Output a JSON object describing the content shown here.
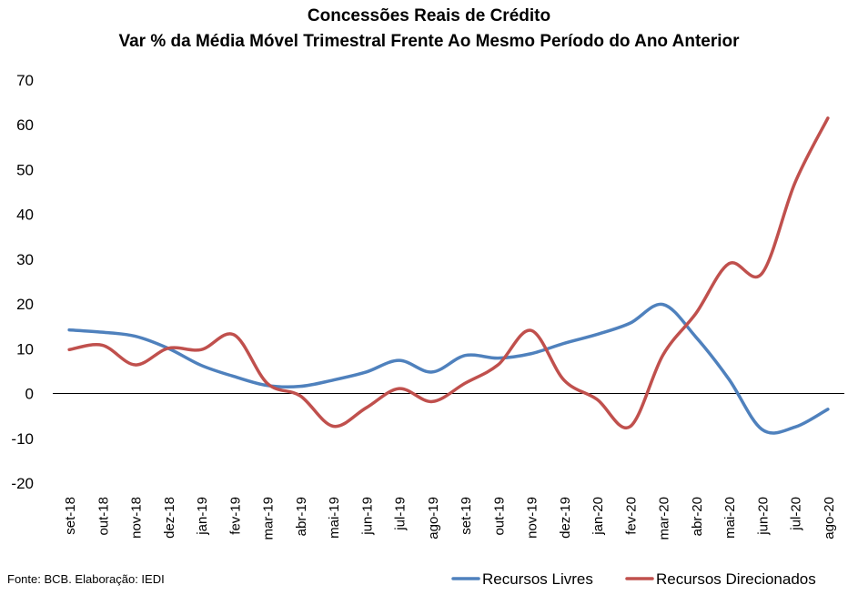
{
  "chart_data": {
    "type": "line",
    "title": "Concessões Reais de Crédito",
    "subtitle": "Var % da Média Móvel Trimestral Frente Ao Mesmo Período do Ano Anterior",
    "xlabel": "",
    "ylabel": "",
    "ylim": [
      -20,
      70
    ],
    "yticks": [
      70,
      60,
      50,
      40,
      30,
      20,
      10,
      0,
      -10,
      -20
    ],
    "categories": [
      "set-18",
      "out-18",
      "nov-18",
      "dez-18",
      "jan-19",
      "fev-19",
      "mar-19",
      "abr-19",
      "mai-19",
      "jun-19",
      "jul-19",
      "ago-19",
      "set-19",
      "out-19",
      "nov-19",
      "dez-19",
      "jan-20",
      "fev-20",
      "mar-20",
      "abr-20",
      "mai-20",
      "jun-20",
      "jul-20",
      "ago-20"
    ],
    "series": [
      {
        "name": "Recursos Livres",
        "color": "#4F81BD",
        "values": [
          14.2,
          13.7,
          12.8,
          10.1,
          6.3,
          3.8,
          1.8,
          1.6,
          3.0,
          4.8,
          7.4,
          4.8,
          8.5,
          7.9,
          8.9,
          11.2,
          13.2,
          15.7,
          19.9,
          12.6,
          3.2,
          -8.0,
          -7.5,
          -3.5
        ]
      },
      {
        "name": "Recursos Direcionados",
        "color": "#C0504D",
        "values": [
          9.8,
          10.8,
          6.4,
          10.1,
          9.8,
          13.1,
          2.3,
          -0.5,
          -7.3,
          -3.2,
          1.1,
          -1.8,
          2.3,
          6.4,
          14.1,
          3.0,
          -1.3,
          -7.4,
          8.6,
          17.9,
          29.0,
          26.8,
          47.0,
          61.5
        ]
      }
    ],
    "grid": false,
    "legend_position": "bottom-right",
    "source_note": "Fonte: BCB. Elaboração: IEDI"
  }
}
